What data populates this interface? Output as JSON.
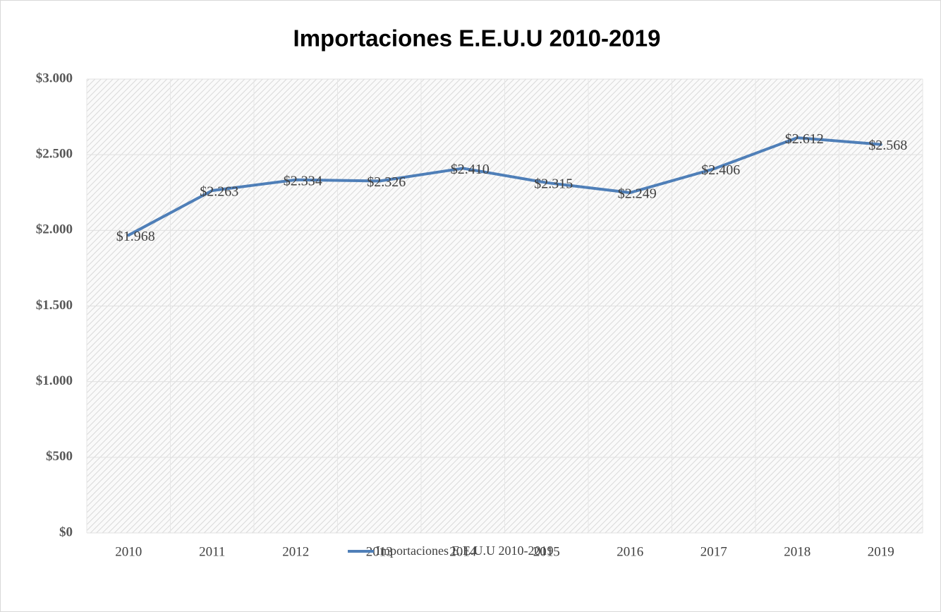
{
  "chart_data": {
    "type": "line",
    "title": "Importaciones E.E.U.U 2010-2019",
    "categories": [
      "2010",
      "2011",
      "2012",
      "2013",
      "2014",
      "2015",
      "2016",
      "2017",
      "2018",
      "2019"
    ],
    "series": [
      {
        "name": "Importaciones E.E.U.U 2010-2019",
        "color": "#4f7fb8",
        "values": [
          1968,
          2263,
          2334,
          2326,
          2410,
          2315,
          2249,
          2406,
          2612,
          2568
        ],
        "value_labels": [
          "$1.968",
          "$2.263",
          "$2.334",
          "$2.326",
          "$2.410",
          "$2.315",
          "$2.249",
          "$2.406",
          "$2.612",
          "$2.568"
        ]
      }
    ],
    "ylim": [
      0,
      3000
    ],
    "yticks": [
      {
        "value": 0,
        "label": "$0"
      },
      {
        "value": 500,
        "label": "$500"
      },
      {
        "value": 1000,
        "label": "$1.000"
      },
      {
        "value": 1500,
        "label": "$1.500"
      },
      {
        "value": 2000,
        "label": "$2.000"
      },
      {
        "value": 2500,
        "label": "$2.500"
      },
      {
        "value": 3000,
        "label": "$3.000"
      }
    ],
    "grid": true,
    "legend": "bottom"
  }
}
